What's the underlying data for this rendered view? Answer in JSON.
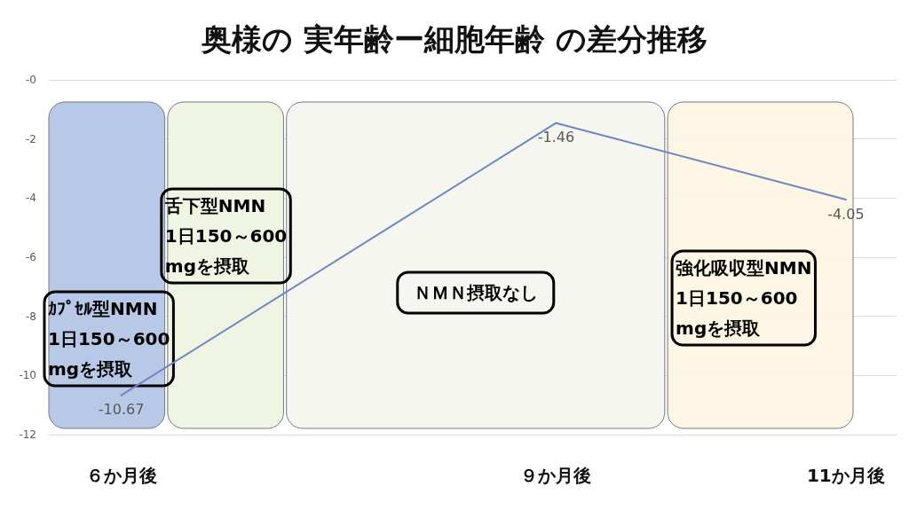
{
  "chart_data": {
    "type": "line",
    "title": "奥様の 実年齢ー細胞年齢 の差分推移",
    "x": [
      6,
      9,
      11
    ],
    "values": [
      -10.67,
      -1.46,
      -4.05
    ],
    "color": "#6f86c0",
    "xlim": [
      5.5,
      11.35
    ],
    "xticks": [
      {
        "value": 6,
        "label": "６か月後"
      },
      {
        "value": 9,
        "label": "９か月後"
      },
      {
        "value": 11,
        "label": "11か月後"
      }
    ],
    "ylim": [
      -12,
      0
    ],
    "yticks": [
      -12,
      -10,
      -8,
      -6,
      -4,
      -2,
      {
        "value": 0,
        "label": "-0"
      }
    ],
    "grid": "y",
    "data_labels": true,
    "marker": "none",
    "line_style": "solid",
    "bands": [
      {
        "axis": "x",
        "from": 5.5,
        "to": 6.3,
        "label": "ｶﾌﾟｾﾙ型NMN\n1日150～600\nmgを摂取",
        "color": "#b4c6e7"
      },
      {
        "axis": "x",
        "from": 6.32,
        "to": 7.12,
        "label": "舌下型NMN\n1日150～600\nmgを摂取",
        "color": "#eef3e2"
      },
      {
        "axis": "x",
        "from": 7.14,
        "to": 9.75,
        "label": "ＮＭＮ摂取なし",
        "color": "#f3f6ee"
      },
      {
        "axis": "x",
        "from": 9.77,
        "to": 11.05,
        "label": "強化吸収型NMN\n1日150～600\nmgを摂取",
        "color": "#fdf6e4"
      }
    ]
  }
}
